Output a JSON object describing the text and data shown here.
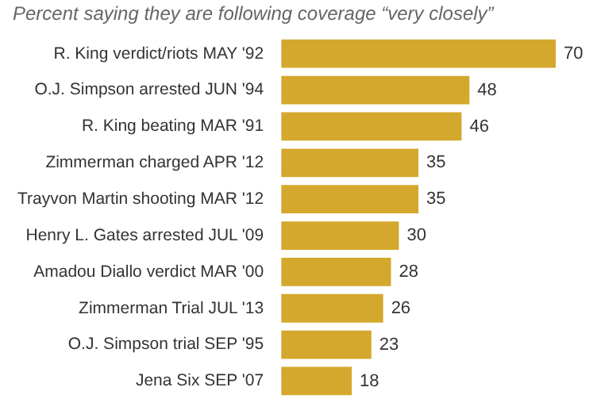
{
  "chart_data": {
    "type": "bar",
    "orientation": "horizontal",
    "title": "Percent saying they are following coverage “very closely”",
    "categories": [
      "R. King verdict/riots MAY '92",
      "O.J. Simpson arrested JUN '94",
      "R. King beating MAR '91",
      "Zimmerman charged APR '12",
      "Trayvon Martin shooting MAR '12",
      "Henry L. Gates arrested JUL '09",
      "Amadou Diallo verdict MAR '00",
      "Zimmerman Trial JUL '13",
      "O.J. Simpson trial SEP '95",
      "Jena Six SEP '07"
    ],
    "values": [
      70,
      48,
      46,
      35,
      35,
      30,
      28,
      26,
      23,
      18
    ],
    "color": "#d4a82c",
    "data_labels": true
  }
}
